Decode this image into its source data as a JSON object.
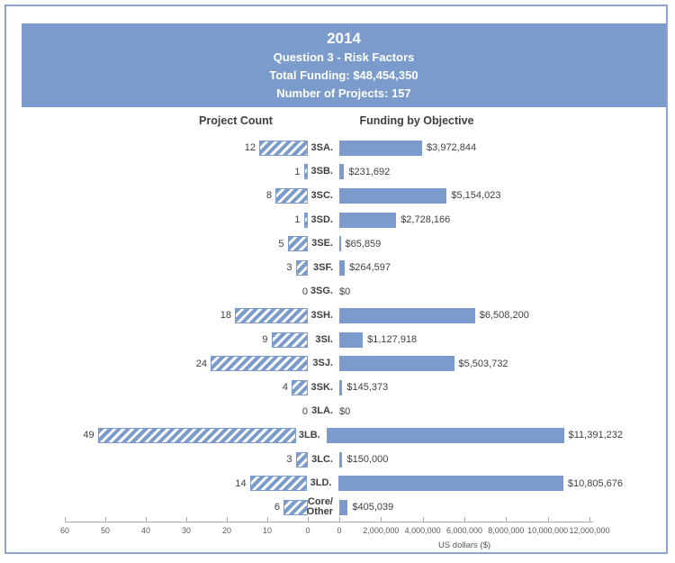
{
  "header": {
    "title": "2014",
    "subtitle": "Question 3 - Risk Factors",
    "total_funding": "Total Funding: $48,454,350",
    "project_count": "Number of Projects: 157"
  },
  "chart_data": {
    "type": "bar",
    "layout": "dual-horizontal-bars",
    "left_title": "Project Count",
    "right_title": "Funding by Objective",
    "categories": [
      "3SA.",
      "3SB.",
      "3SC.",
      "3SD.",
      "3SE.",
      "3SF.",
      "3SG.",
      "3SH.",
      "3SI.",
      "3SJ.",
      "3SK.",
      "3LA.",
      "3LB.",
      "3LC.",
      "3LD.",
      "Core/\nOther"
    ],
    "series": [
      {
        "name": "Project Count",
        "values": [
          12,
          1,
          8,
          1,
          5,
          3,
          0,
          18,
          9,
          24,
          4,
          0,
          49,
          3,
          14,
          6
        ]
      },
      {
        "name": "Funding by Objective",
        "values": [
          3972844,
          231692,
          5154023,
          2728166,
          65859,
          264597,
          0,
          6508200,
          1127918,
          5503732,
          145373,
          0,
          11391232,
          150000,
          10805676,
          405039
        ]
      }
    ],
    "count_labels": [
      "12",
      "1",
      "8",
      "1",
      "5",
      "3",
      "0",
      "18",
      "9",
      "24",
      "4",
      "0",
      "49",
      "3",
      "14",
      "6"
    ],
    "funding_labels": [
      "$3,972,844",
      "$231,692",
      "$5,154,023",
      "$2,728,166",
      "$65,859",
      "$264,597",
      "$0",
      "$6,508,200",
      "$1,127,918",
      "$5,503,732",
      "$145,373",
      "$0",
      "$11,391,232",
      "$150,000",
      "$10,805,676",
      "$405,039"
    ],
    "left_axis": {
      "ticks": [
        60,
        50,
        40,
        30,
        20,
        10,
        0
      ],
      "max": 60,
      "direction": "reversed"
    },
    "right_axis": {
      "ticks": [
        0,
        2000000,
        4000000,
        6000000,
        8000000,
        10000000,
        12000000
      ],
      "tick_labels": [
        "0",
        "2,000,000",
        "4,000,000",
        "6,000,000",
        "8,000,000",
        "10,000,000",
        "12,000,000"
      ],
      "max": 12000000,
      "label": "US dollars ($)"
    },
    "grid": false,
    "colors": {
      "bar_blue": "#7a9bcb",
      "banner_blue": "#7a9bcb",
      "frame_border": "#8aa5d0",
      "text_dark": "#3f3f3f",
      "axis_line": "#a8a8a8",
      "axis_text": "#595959"
    }
  }
}
